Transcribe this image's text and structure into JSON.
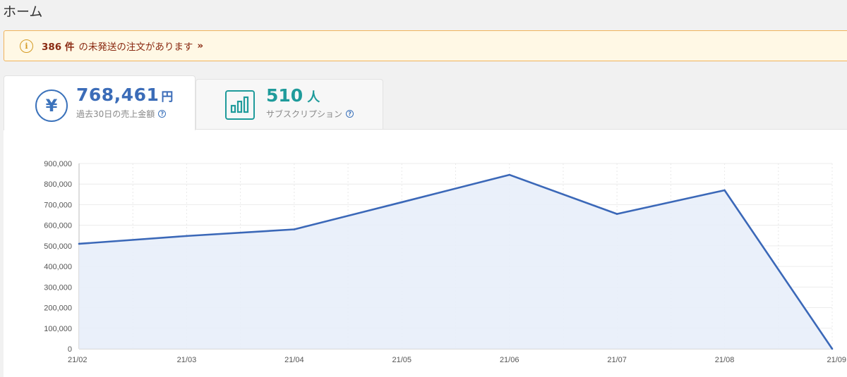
{
  "header": {
    "title": "ホーム"
  },
  "notice": {
    "count": "386 件",
    "message": "の未発送の注文があります",
    "link_mark": "»"
  },
  "tabs": {
    "sales": {
      "value": "768,461",
      "unit": "円",
      "label": "過去30日の売上金額",
      "help": "?",
      "icon": "yen-icon",
      "color": "#3b6cb8"
    },
    "subscriptions": {
      "value": "510",
      "unit": "人",
      "label": "サブスクリプション",
      "help": "?",
      "icon": "bar-chart-icon",
      "color": "#1f9b9b"
    }
  },
  "chart_data": {
    "type": "area",
    "categories": [
      "21/02",
      "21/03",
      "21/04",
      "21/05",
      "21/06",
      "21/07",
      "21/08",
      "21/09"
    ],
    "values": [
      510000,
      548000,
      580000,
      712000,
      845000,
      655000,
      770000,
      0
    ],
    "ylim": [
      0,
      900000
    ],
    "yticks": [
      "0",
      "100,000",
      "200,000",
      "300,000",
      "400,000",
      "500,000",
      "600,000",
      "700,000",
      "800,000",
      "900,000"
    ],
    "line_color": "#3b68b8",
    "fill_color": "#e8eefa",
    "grid": true
  }
}
